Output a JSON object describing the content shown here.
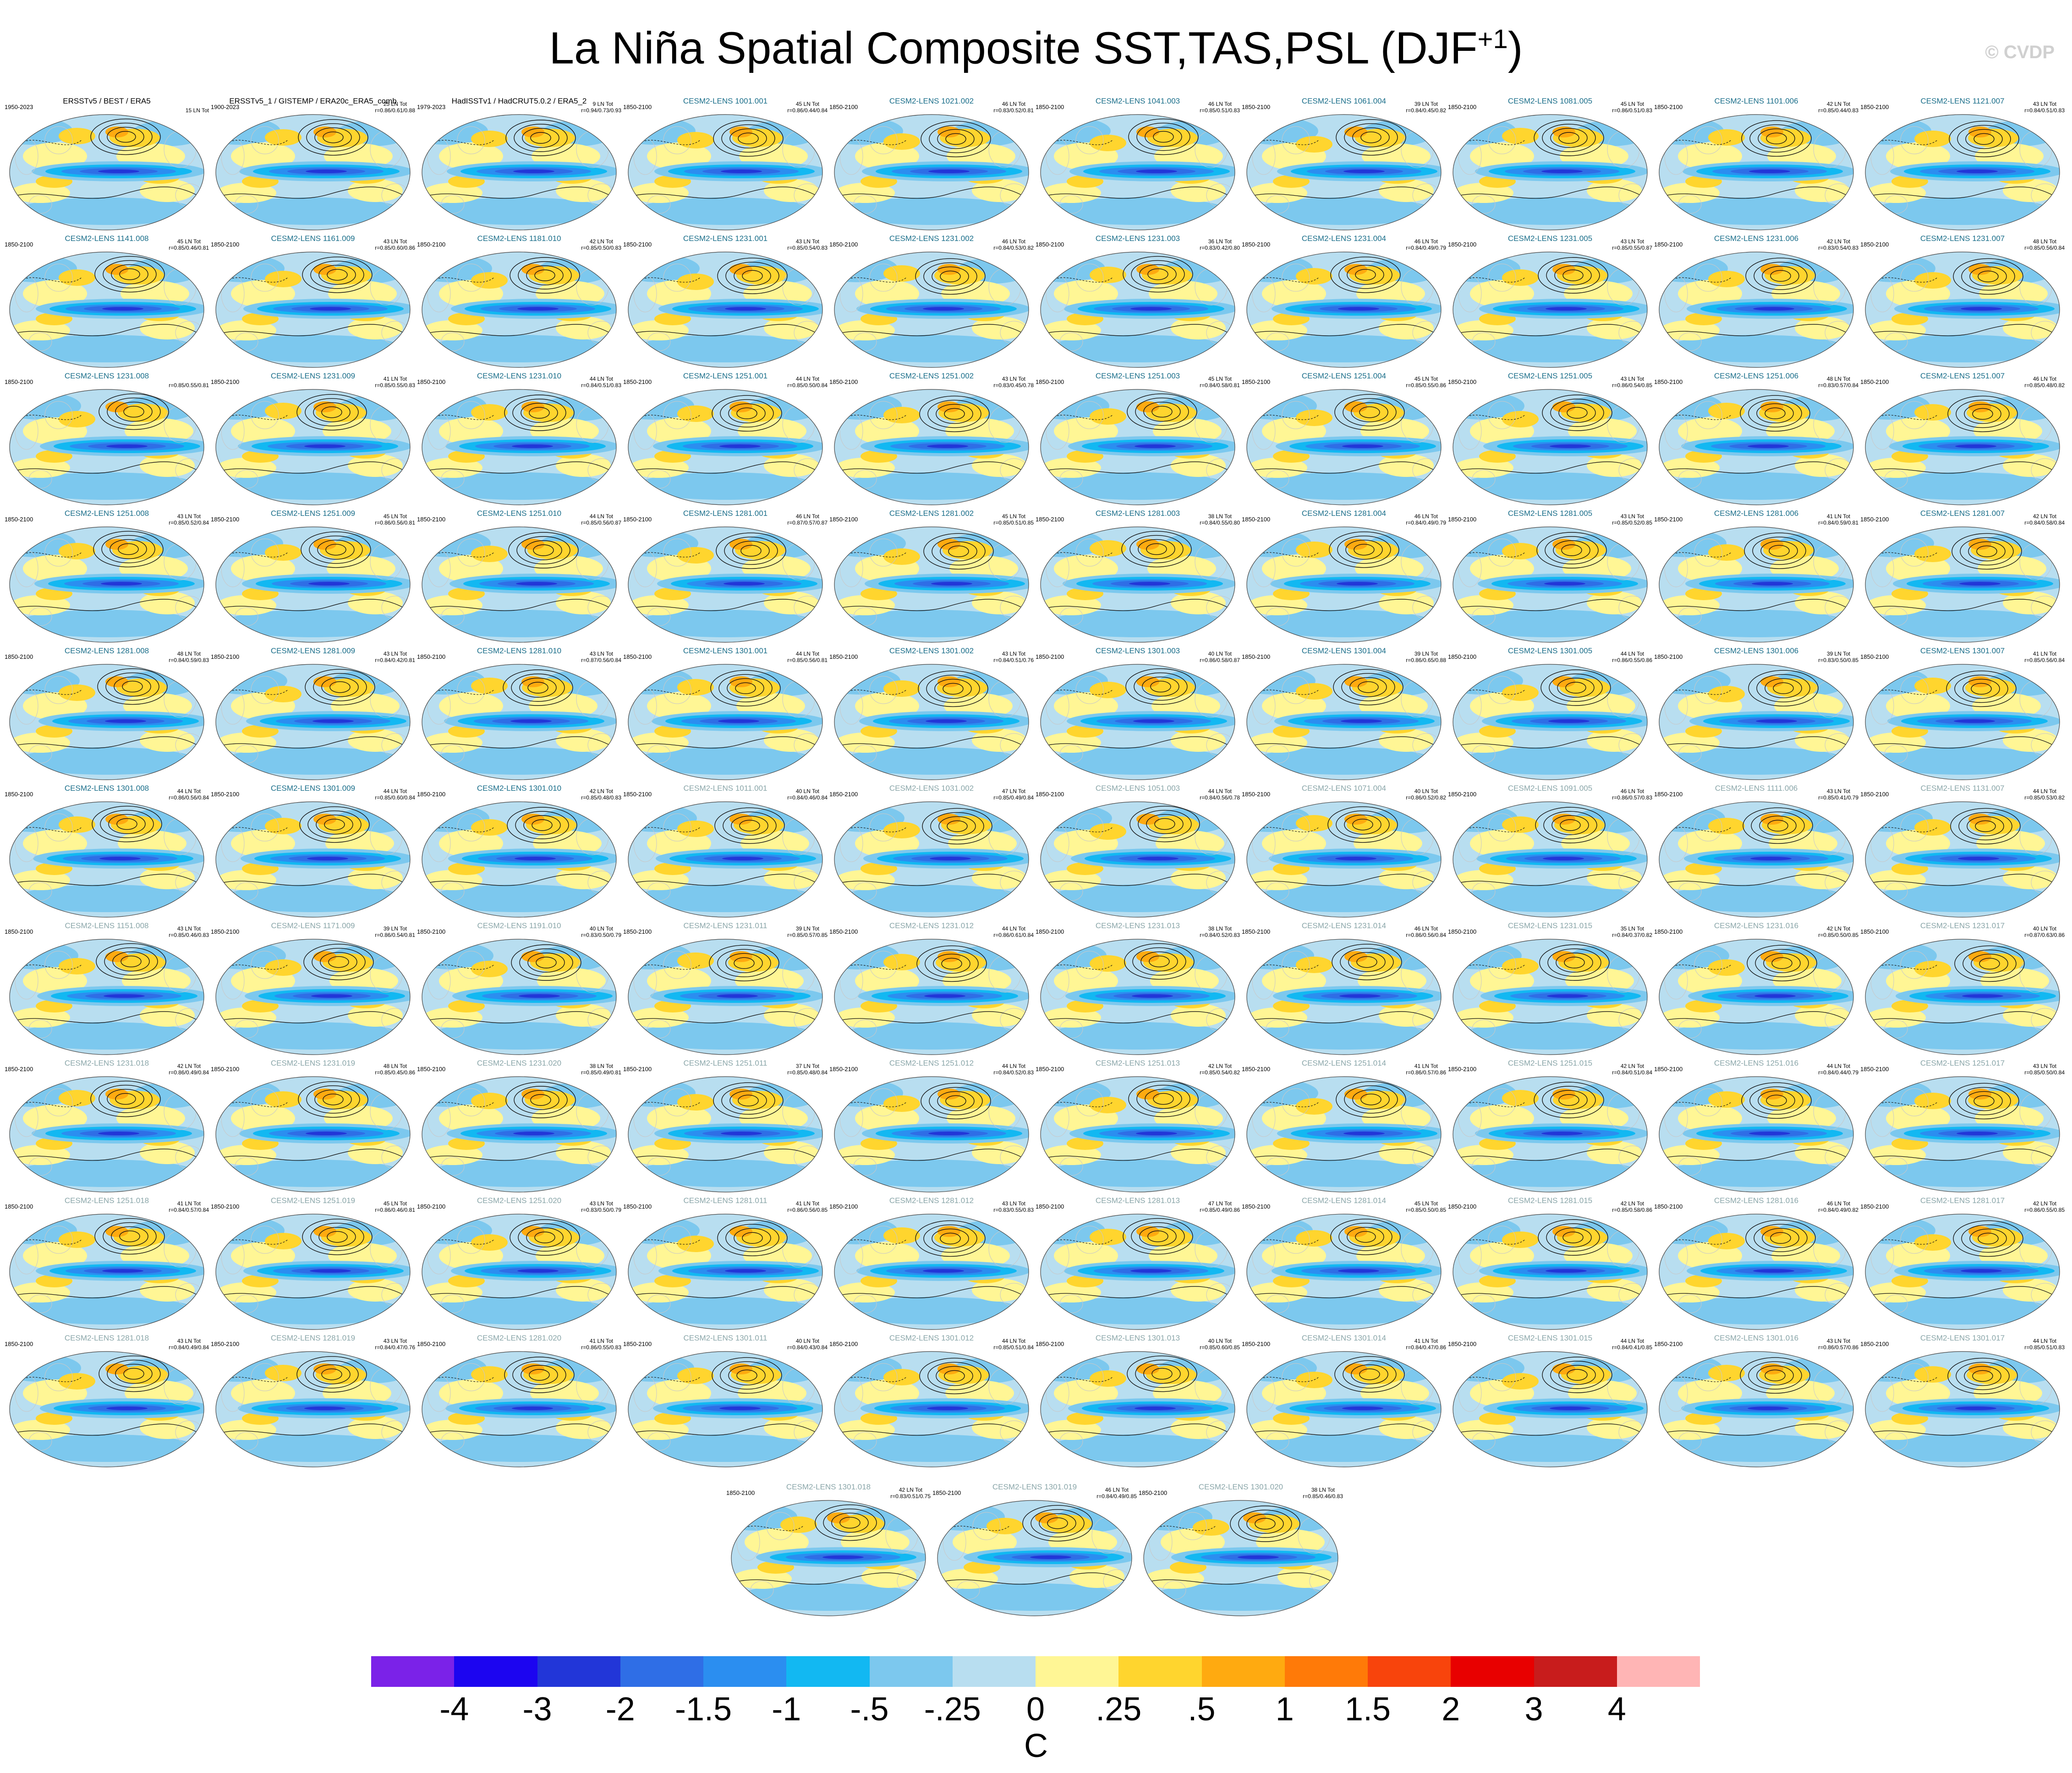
{
  "title": "La Niña Spatial Composite SST,TAS,PSL (DJF",
  "title_sup": "+1",
  "title_close": ")",
  "watermark": "© CVDP",
  "chart_data": {
    "type": "heatmap",
    "title": "La Niña Spatial Composite SST,TAS,PSL (DJF+1)",
    "panels": [
      {
        "t": "ERSSTv5 / BEST / ERA5",
        "p": "1950-2023",
        "s1": "",
        "s2": "15 LN Tot",
        "style": "obs"
      },
      {
        "t": "ERSSTv5_1 / GISTEMP / ERA20c_ERA5_comb",
        "p": "1900-2023",
        "s1": "25 LN Tot",
        "s2": "r=0.86/0.61/0.88",
        "style": "obs"
      },
      {
        "t": "HadISSTv1 / HadCRUT5.0.2 / ERA5_2",
        "p": "1979-2023",
        "s1": "9 LN Tot",
        "s2": "r=0.94/0.73/0.93",
        "style": "obs"
      },
      {
        "t": "CESM2-LENS 1001.001",
        "p": "1850-2100",
        "s1": "45 LN Tot",
        "s2": "r=0.86/0.44/0.84",
        "style": "model"
      },
      {
        "t": "CESM2-LENS 1021.002",
        "p": "1850-2100",
        "s1": "46 LN Tot",
        "s2": "r=0.83/0.52/0.81",
        "style": "model"
      },
      {
        "t": "CESM2-LENS 1041.003",
        "p": "1850-2100",
        "s1": "46 LN Tot",
        "s2": "r=0.85/0.51/0.83",
        "style": "model"
      },
      {
        "t": "CESM2-LENS 1061.004",
        "p": "1850-2100",
        "s1": "39 LN Tot",
        "s2": "r=0.84/0.45/0.82",
        "style": "model"
      },
      {
        "t": "CESM2-LENS 1081.005",
        "p": "1850-2100",
        "s1": "45 LN Tot",
        "s2": "r=0.86/0.51/0.83",
        "style": "model"
      },
      {
        "t": "CESM2-LENS 1101.006",
        "p": "1850-2100",
        "s1": "42 LN Tot",
        "s2": "r=0.85/0.44/0.83",
        "style": "model"
      },
      {
        "t": "CESM2-LENS 1121.007",
        "p": "1850-2100",
        "s1": "43 LN Tot",
        "s2": "r=0.84/0.51/0.83",
        "style": "model"
      },
      {
        "t": "CESM2-LENS 1141.008",
        "p": "1850-2100",
        "s1": "45 LN Tot",
        "s2": "r=0.85/0.46/0.81",
        "style": "model"
      },
      {
        "t": "CESM2-LENS 1161.009",
        "p": "1850-2100",
        "s1": "43 LN Tot",
        "s2": "r=0.85/0.60/0.86",
        "style": "model"
      },
      {
        "t": "CESM2-LENS 1181.010",
        "p": "1850-2100",
        "s1": "42 LN Tot",
        "s2": "r=0.85/0.50/0.83",
        "style": "model"
      },
      {
        "t": "CESM2-LENS 1231.001",
        "p": "1850-2100",
        "s1": "43 LN Tot",
        "s2": "r=0.85/0.54/0.83",
        "style": "model"
      },
      {
        "t": "CESM2-LENS 1231.002",
        "p": "1850-2100",
        "s1": "46 LN Tot",
        "s2": "r=0.84/0.53/0.82",
        "style": "model"
      },
      {
        "t": "CESM2-LENS 1231.003",
        "p": "1850-2100",
        "s1": "36 LN Tot",
        "s2": "r=0.83/0.42/0.80",
        "style": "model"
      },
      {
        "t": "CESM2-LENS 1231.004",
        "p": "1850-2100",
        "s1": "46 LN Tot",
        "s2": "r=0.84/0.49/0.79",
        "style": "model"
      },
      {
        "t": "CESM2-LENS 1231.005",
        "p": "1850-2100",
        "s1": "43 LN Tot",
        "s2": "r=0.85/0.55/0.87",
        "style": "model"
      },
      {
        "t": "CESM2-LENS 1231.006",
        "p": "1850-2100",
        "s1": "42 LN Tot",
        "s2": "r=0.83/0.54/0.83",
        "style": "model"
      },
      {
        "t": "CESM2-LENS 1231.007",
        "p": "1850-2100",
        "s1": "48 LN Tot",
        "s2": "r=0.85/0.56/0.84",
        "style": "model"
      },
      {
        "t": "CESM2-LENS 1231.008",
        "p": "1850-2100",
        "s1": "",
        "s2": "r=0.85/0.55/0.81",
        "style": "model"
      },
      {
        "t": "CESM2-LENS 1231.009",
        "p": "1850-2100",
        "s1": "41 LN Tot",
        "s2": "r=0.85/0.55/0.83",
        "style": "model"
      },
      {
        "t": "CESM2-LENS 1231.010",
        "p": "1850-2100",
        "s1": "44 LN Tot",
        "s2": "r=0.84/0.51/0.83",
        "style": "model"
      },
      {
        "t": "CESM2-LENS 1251.001",
        "p": "1850-2100",
        "s1": "44 LN Tot",
        "s2": "r=0.85/0.50/0.84",
        "style": "model"
      },
      {
        "t": "CESM2-LENS 1251.002",
        "p": "1850-2100",
        "s1": "43 LN Tot",
        "s2": "r=0.83/0.45/0.78",
        "style": "model"
      },
      {
        "t": "CESM2-LENS 1251.003",
        "p": "1850-2100",
        "s1": "45 LN Tot",
        "s2": "r=0.84/0.58/0.81",
        "style": "model"
      },
      {
        "t": "CESM2-LENS 1251.004",
        "p": "1850-2100",
        "s1": "45 LN Tot",
        "s2": "r=0.85/0.55/0.86",
        "style": "model"
      },
      {
        "t": "CESM2-LENS 1251.005",
        "p": "1850-2100",
        "s1": "43 LN Tot",
        "s2": "r=0.86/0.54/0.85",
        "style": "model"
      },
      {
        "t": "CESM2-LENS 1251.006",
        "p": "1850-2100",
        "s1": "48 LN Tot",
        "s2": "r=0.83/0.57/0.84",
        "style": "model"
      },
      {
        "t": "CESM2-LENS 1251.007",
        "p": "1850-2100",
        "s1": "46 LN Tot",
        "s2": "r=0.85/0.48/0.82",
        "style": "model"
      },
      {
        "t": "CESM2-LENS 1251.008",
        "p": "1850-2100",
        "s1": "43 LN Tot",
        "s2": "r=0.85/0.52/0.84",
        "style": "model"
      },
      {
        "t": "CESM2-LENS 1251.009",
        "p": "1850-2100",
        "s1": "45 LN Tot",
        "s2": "r=0.86/0.56/0.81",
        "style": "model"
      },
      {
        "t": "CESM2-LENS 1251.010",
        "p": "1850-2100",
        "s1": "44 LN Tot",
        "s2": "r=0.85/0.56/0.87",
        "style": "model"
      },
      {
        "t": "CESM2-LENS 1281.001",
        "p": "1850-2100",
        "s1": "46 LN Tot",
        "s2": "r=0.87/0.57/0.87",
        "style": "model"
      },
      {
        "t": "CESM2-LENS 1281.002",
        "p": "1850-2100",
        "s1": "45 LN Tot",
        "s2": "r=0.85/0.51/0.85",
        "style": "model"
      },
      {
        "t": "CESM2-LENS 1281.003",
        "p": "1850-2100",
        "s1": "38 LN Tot",
        "s2": "r=0.84/0.55/0.80",
        "style": "model"
      },
      {
        "t": "CESM2-LENS 1281.004",
        "p": "1850-2100",
        "s1": "46 LN Tot",
        "s2": "r=0.84/0.49/0.79",
        "style": "model"
      },
      {
        "t": "CESM2-LENS 1281.005",
        "p": "1850-2100",
        "s1": "43 LN Tot",
        "s2": "r=0.85/0.52/0.85",
        "style": "model"
      },
      {
        "t": "CESM2-LENS 1281.006",
        "p": "1850-2100",
        "s1": "41 LN Tot",
        "s2": "r=0.84/0.59/0.81",
        "style": "model"
      },
      {
        "t": "CESM2-LENS 1281.007",
        "p": "1850-2100",
        "s1": "42 LN Tot",
        "s2": "r=0.84/0.58/0.84",
        "style": "model"
      },
      {
        "t": "CESM2-LENS 1281.008",
        "p": "1850-2100",
        "s1": "48 LN Tot",
        "s2": "r=0.84/0.59/0.83",
        "style": "model"
      },
      {
        "t": "CESM2-LENS 1281.009",
        "p": "1850-2100",
        "s1": "43 LN Tot",
        "s2": "r=0.84/0.42/0.81",
        "style": "model"
      },
      {
        "t": "CESM2-LENS 1281.010",
        "p": "1850-2100",
        "s1": "43 LN Tot",
        "s2": "r=0.87/0.56/0.84",
        "style": "model"
      },
      {
        "t": "CESM2-LENS 1301.001",
        "p": "1850-2100",
        "s1": "44 LN Tot",
        "s2": "r=0.85/0.56/0.81",
        "style": "model"
      },
      {
        "t": "CESM2-LENS 1301.002",
        "p": "1850-2100",
        "s1": "43 LN Tot",
        "s2": "r=0.84/0.51/0.76",
        "style": "model"
      },
      {
        "t": "CESM2-LENS 1301.003",
        "p": "1850-2100",
        "s1": "40 LN Tot",
        "s2": "r=0.86/0.58/0.87",
        "style": "model"
      },
      {
        "t": "CESM2-LENS 1301.004",
        "p": "1850-2100",
        "s1": "39 LN Tot",
        "s2": "r=0.86/0.65/0.88",
        "style": "model"
      },
      {
        "t": "CESM2-LENS 1301.005",
        "p": "1850-2100",
        "s1": "44 LN Tot",
        "s2": "r=0.86/0.55/0.86",
        "style": "model"
      },
      {
        "t": "CESM2-LENS 1301.006",
        "p": "1850-2100",
        "s1": "39 LN Tot",
        "s2": "r=0.83/0.50/0.85",
        "style": "model"
      },
      {
        "t": "CESM2-LENS 1301.007",
        "p": "1850-2100",
        "s1": "41 LN Tot",
        "s2": "r=0.85/0.56/0.84",
        "style": "model"
      },
      {
        "t": "CESM2-LENS 1301.008",
        "p": "1850-2100",
        "s1": "44 LN Tot",
        "s2": "r=0.86/0.56/0.84",
        "style": "model"
      },
      {
        "t": "CESM2-LENS 1301.009",
        "p": "1850-2100",
        "s1": "44 LN Tot",
        "s2": "r=0.85/0.60/0.84",
        "style": "model"
      },
      {
        "t": "CESM2-LENS 1301.010",
        "p": "1850-2100",
        "s1": "42 LN Tot",
        "s2": "r=0.85/0.48/0.83",
        "style": "model"
      },
      {
        "t": "CESM2-LENS 1011.001",
        "p": "1850-2100",
        "s1": "40 LN Tot",
        "s2": "r=0.84/0.46/0.84",
        "style": "faded"
      },
      {
        "t": "CESM2-LENS 1031.002",
        "p": "1850-2100",
        "s1": "47 LN Tot",
        "s2": "r=0.85/0.49/0.84",
        "style": "faded"
      },
      {
        "t": "CESM2-LENS 1051.003",
        "p": "1850-2100",
        "s1": "44 LN Tot",
        "s2": "r=0.84/0.56/0.78",
        "style": "faded"
      },
      {
        "t": "CESM2-LENS 1071.004",
        "p": "1850-2100",
        "s1": "40 LN Tot",
        "s2": "r=0.86/0.52/0.82",
        "style": "faded"
      },
      {
        "t": "CESM2-LENS 1091.005",
        "p": "1850-2100",
        "s1": "46 LN Tot",
        "s2": "r=0.86/0.57/0.83",
        "style": "faded"
      },
      {
        "t": "CESM2-LENS 1111.006",
        "p": "1850-2100",
        "s1": "43 LN Tot",
        "s2": "r=0.85/0.41/0.79",
        "style": "faded"
      },
      {
        "t": "CESM2-LENS 1131.007",
        "p": "1850-2100",
        "s1": "44 LN Tot",
        "s2": "r=0.85/0.53/0.82",
        "style": "faded"
      },
      {
        "t": "CESM2-LENS 1151.008",
        "p": "1850-2100",
        "s1": "43 LN Tot",
        "s2": "r=0.85/0.46/0.83",
        "style": "faded"
      },
      {
        "t": "CESM2-LENS 1171.009",
        "p": "1850-2100",
        "s1": "39 LN Tot",
        "s2": "r=0.86/0.54/0.81",
        "style": "faded"
      },
      {
        "t": "CESM2-LENS 1191.010",
        "p": "1850-2100",
        "s1": "40 LN Tot",
        "s2": "r=0.83/0.50/0.79",
        "style": "faded"
      },
      {
        "t": "CESM2-LENS 1231.011",
        "p": "1850-2100",
        "s1": "39 LN Tot",
        "s2": "r=0.85/0.57/0.85",
        "style": "faded"
      },
      {
        "t": "CESM2-LENS 1231.012",
        "p": "1850-2100",
        "s1": "44 LN Tot",
        "s2": "r=0.86/0.61/0.84",
        "style": "faded"
      },
      {
        "t": "CESM2-LENS 1231.013",
        "p": "1850-2100",
        "s1": "38 LN Tot",
        "s2": "r=0.84/0.52/0.83",
        "style": "faded"
      },
      {
        "t": "CESM2-LENS 1231.014",
        "p": "1850-2100",
        "s1": "46 LN Tot",
        "s2": "r=0.86/0.56/0.84",
        "style": "faded"
      },
      {
        "t": "CESM2-LENS 1231.015",
        "p": "1850-2100",
        "s1": "35 LN Tot",
        "s2": "r=0.84/0.37/0.82",
        "style": "faded"
      },
      {
        "t": "CESM2-LENS 1231.016",
        "p": "1850-2100",
        "s1": "42 LN Tot",
        "s2": "r=0.85/0.50/0.85",
        "style": "faded"
      },
      {
        "t": "CESM2-LENS 1231.017",
        "p": "1850-2100",
        "s1": "40 LN Tot",
        "s2": "r=0.87/0.63/0.86",
        "style": "faded"
      },
      {
        "t": "CESM2-LENS 1231.018",
        "p": "1850-2100",
        "s1": "42 LN Tot",
        "s2": "r=0.86/0.49/0.84",
        "style": "faded"
      },
      {
        "t": "CESM2-LENS 1231.019",
        "p": "1850-2100",
        "s1": "48 LN Tot",
        "s2": "r=0.85/0.45/0.86",
        "style": "faded"
      },
      {
        "t": "CESM2-LENS 1231.020",
        "p": "1850-2100",
        "s1": "38 LN Tot",
        "s2": "r=0.85/0.49/0.81",
        "style": "faded"
      },
      {
        "t": "CESM2-LENS 1251.011",
        "p": "1850-2100",
        "s1": "37 LN Tot",
        "s2": "r=0.85/0.48/0.84",
        "style": "faded"
      },
      {
        "t": "CESM2-LENS 1251.012",
        "p": "1850-2100",
        "s1": "44 LN Tot",
        "s2": "r=0.84/0.52/0.83",
        "style": "faded"
      },
      {
        "t": "CESM2-LENS 1251.013",
        "p": "1850-2100",
        "s1": "42 LN Tot",
        "s2": "r=0.85/0.54/0.82",
        "style": "faded"
      },
      {
        "t": "CESM2-LENS 1251.014",
        "p": "1850-2100",
        "s1": "41 LN Tot",
        "s2": "r=0.86/0.57/0.86",
        "style": "faded"
      },
      {
        "t": "CESM2-LENS 1251.015",
        "p": "1850-2100",
        "s1": "42 LN Tot",
        "s2": "r=0.84/0.51/0.84",
        "style": "faded"
      },
      {
        "t": "CESM2-LENS 1251.016",
        "p": "1850-2100",
        "s1": "44 LN Tot",
        "s2": "r=0.84/0.44/0.79",
        "style": "faded"
      },
      {
        "t": "CESM2-LENS 1251.017",
        "p": "1850-2100",
        "s1": "43 LN Tot",
        "s2": "r=0.85/0.50/0.84",
        "style": "faded"
      },
      {
        "t": "CESM2-LENS 1251.018",
        "p": "1850-2100",
        "s1": "41 LN Tot",
        "s2": "r=0.84/0.57/0.84",
        "style": "faded"
      },
      {
        "t": "CESM2-LENS 1251.019",
        "p": "1850-2100",
        "s1": "45 LN Tot",
        "s2": "r=0.86/0.46/0.81",
        "style": "faded"
      },
      {
        "t": "CESM2-LENS 1251.020",
        "p": "1850-2100",
        "s1": "43 LN Tot",
        "s2": "r=0.83/0.50/0.79",
        "style": "faded"
      },
      {
        "t": "CESM2-LENS 1281.011",
        "p": "1850-2100",
        "s1": "41 LN Tot",
        "s2": "r=0.86/0.56/0.85",
        "style": "faded"
      },
      {
        "t": "CESM2-LENS 1281.012",
        "p": "1850-2100",
        "s1": "43 LN Tot",
        "s2": "r=0.83/0.55/0.83",
        "style": "faded"
      },
      {
        "t": "CESM2-LENS 1281.013",
        "p": "1850-2100",
        "s1": "47 LN Tot",
        "s2": "r=0.85/0.49/0.86",
        "style": "faded"
      },
      {
        "t": "CESM2-LENS 1281.014",
        "p": "1850-2100",
        "s1": "45 LN Tot",
        "s2": "r=0.85/0.50/0.85",
        "style": "faded"
      },
      {
        "t": "CESM2-LENS 1281.015",
        "p": "1850-2100",
        "s1": "42 LN Tot",
        "s2": "r=0.85/0.58/0.86",
        "style": "faded"
      },
      {
        "t": "CESM2-LENS 1281.016",
        "p": "1850-2100",
        "s1": "46 LN Tot",
        "s2": "r=0.84/0.49/0.82",
        "style": "faded"
      },
      {
        "t": "CESM2-LENS 1281.017",
        "p": "1850-2100",
        "s1": "42 LN Tot",
        "s2": "r=0.86/0.55/0.85",
        "style": "faded"
      },
      {
        "t": "CESM2-LENS 1281.018",
        "p": "1850-2100",
        "s1": "43 LN Tot",
        "s2": "r=0.84/0.49/0.84",
        "style": "faded"
      },
      {
        "t": "CESM2-LENS 1281.019",
        "p": "1850-2100",
        "s1": "43 LN Tot",
        "s2": "r=0.84/0.47/0.76",
        "style": "faded"
      },
      {
        "t": "CESM2-LENS 1281.020",
        "p": "1850-2100",
        "s1": "41 LN Tot",
        "s2": "r=0.86/0.55/0.83",
        "style": "faded"
      },
      {
        "t": "CESM2-LENS 1301.011",
        "p": "1850-2100",
        "s1": "40 LN Tot",
        "s2": "r=0.84/0.43/0.84",
        "style": "faded"
      },
      {
        "t": "CESM2-LENS 1301.012",
        "p": "1850-2100",
        "s1": "44 LN Tot",
        "s2": "r=0.85/0.51/0.84",
        "style": "faded"
      },
      {
        "t": "CESM2-LENS 1301.013",
        "p": "1850-2100",
        "s1": "40 LN Tot",
        "s2": "r=0.85/0.60/0.85",
        "style": "faded"
      },
      {
        "t": "CESM2-LENS 1301.014",
        "p": "1850-2100",
        "s1": "41 LN Tot",
        "s2": "r=0.84/0.47/0.86",
        "style": "faded"
      },
      {
        "t": "CESM2-LENS 1301.015",
        "p": "1850-2100",
        "s1": "44 LN Tot",
        "s2": "r=0.84/0.41/0.85",
        "style": "faded"
      },
      {
        "t": "CESM2-LENS 1301.016",
        "p": "1850-2100",
        "s1": "43 LN Tot",
        "s2": "r=0.86/0.57/0.86",
        "style": "faded"
      },
      {
        "t": "CESM2-LENS 1301.017",
        "p": "1850-2100",
        "s1": "44 LN Tot",
        "s2": "r=0.85/0.51/0.83",
        "style": "faded"
      },
      {
        "t": "CESM2-LENS 1301.018",
        "p": "1850-2100",
        "s1": "42 LN Tot",
        "s2": "r=0.83/0.51/0.75",
        "style": "faded"
      },
      {
        "t": "CESM2-LENS 1301.019",
        "p": "1850-2100",
        "s1": "46 LN Tot",
        "s2": "r=0.84/0.49/0.85",
        "style": "faded"
      },
      {
        "t": "CESM2-LENS 1301.020",
        "p": "1850-2100",
        "s1": "38 LN Tot",
        "s2": "r=0.85/0.46/0.83",
        "style": "faded"
      }
    ],
    "colorbar": {
      "levels": [
        "-4",
        "-3",
        "-2",
        "-1.5",
        "-1",
        "-.5",
        "-.25",
        "0",
        ".25",
        ".5",
        "1",
        "1.5",
        "2",
        "3",
        "4"
      ],
      "colors": [
        "#7b22e8",
        "#1c05f0",
        "#2236d8",
        "#2f6ee6",
        "#2b8ef0",
        "#12b8f2",
        "#7cc8ee",
        "#b8def0",
        "#fff695",
        "#ffd52e",
        "#ffaa10",
        "#ff7a08",
        "#f8440c",
        "#e80000",
        "#c81c1c",
        "#ffb5b5"
      ],
      "units": "C"
    }
  }
}
